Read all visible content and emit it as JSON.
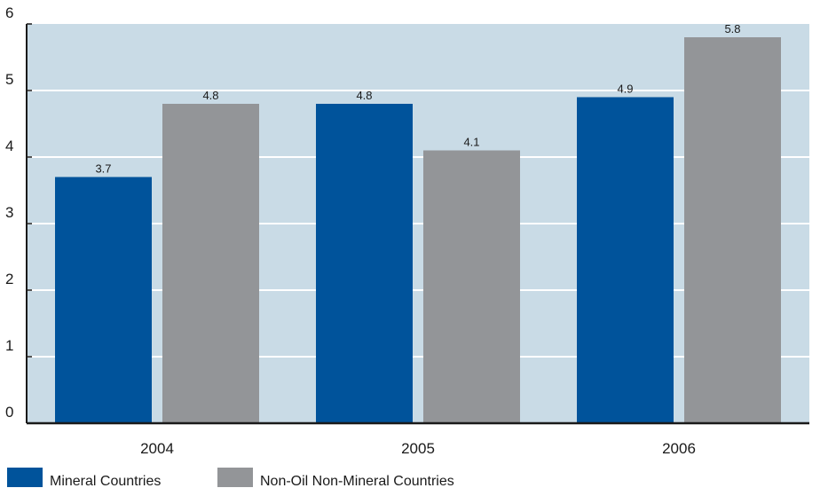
{
  "chart_data": {
    "type": "bar",
    "title": "",
    "xlabel": "",
    "ylabel": "",
    "categories": [
      "2004",
      "2005",
      "2006"
    ],
    "series": [
      {
        "name": "Mineral Countries",
        "values": [
          3.7,
          4.8,
          4.9
        ],
        "color": "#00539b"
      },
      {
        "name": "Non-Oil Non-Mineral Countries",
        "values": [
          4.8,
          4.1,
          5.8
        ],
        "color": "#939598"
      }
    ],
    "ylim": [
      0,
      6
    ],
    "yticks": [
      "0",
      "1",
      "2",
      "3",
      "4",
      "5",
      "6"
    ],
    "grid": true,
    "plot_background": "#c9dbe6",
    "legend_position": "bottom-left"
  }
}
